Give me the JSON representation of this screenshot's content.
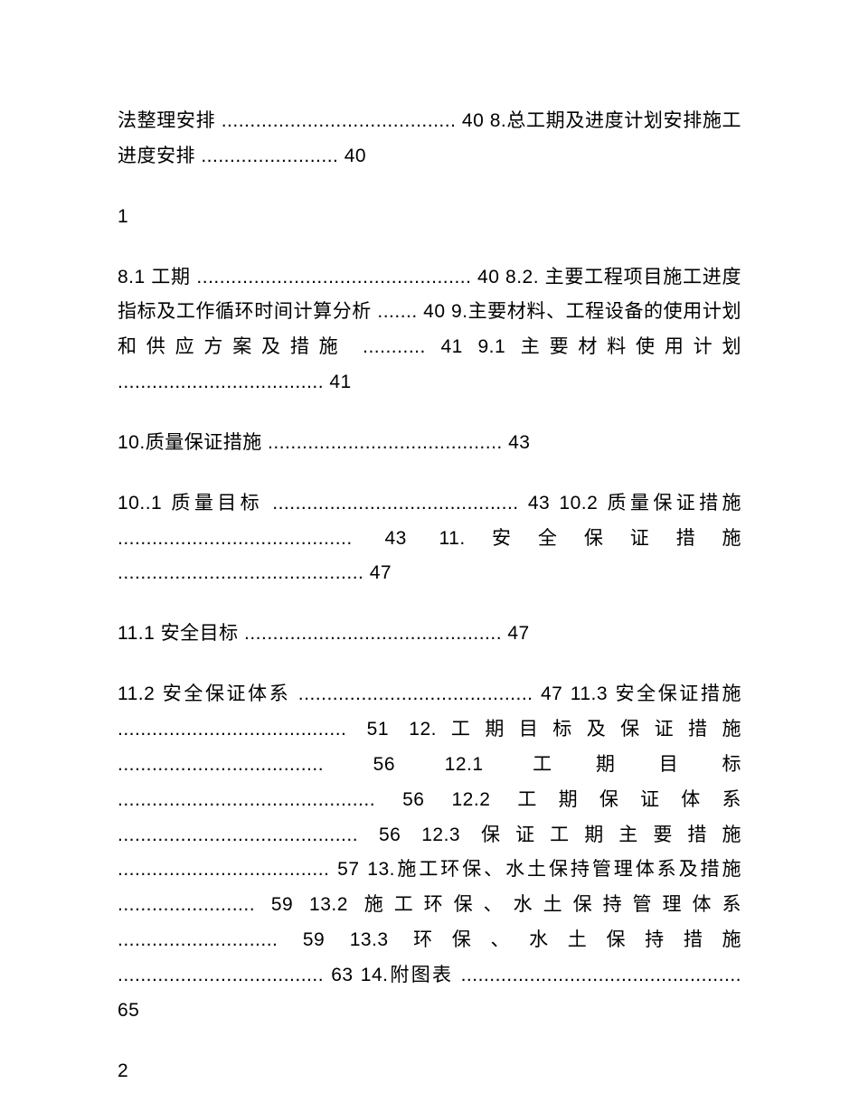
{
  "document": {
    "font_size": 21,
    "line_height": 1.85,
    "text_color": "#000000",
    "background_color": "#ffffff",
    "paragraphs": [
      {
        "type": "paragraph",
        "text": "法整理安排 ......................................... 40 8.总工期及进度计划安排施工进度安排 ........................ 40"
      },
      {
        "type": "page-num",
        "text": "1"
      },
      {
        "type": "paragraph",
        "text": "8.1 工期 ................................................ 40 8.2. 主要工程项目施工进度指标及工作循环时间计算分析 ....... 40 9.主要材料、工程设备的使用计划和供应方案及措施 ........... 41 9.1 主要材料使用计划 .................................... 41"
      },
      {
        "type": "paragraph",
        "text": "10.质量保证措施 ......................................... 43"
      },
      {
        "type": "paragraph",
        "text": "10..1 质量目标 ........................................... 43 10.2 质量保证措施 ......................................... 43 11.安全保证措施 ........................................... 47"
      },
      {
        "type": "paragraph",
        "text": "11.1 安全目标 ............................................. 47"
      },
      {
        "type": "paragraph",
        "text": "11.2 安全保证体系 ......................................... 47 11.3 安全保证措施 ........................................ 51 12.工期目标及保证措施 .................................... 56 12.1 工期目标 ............................................. 56 12.2 工期保证体系 .......................................... 56 12.3 保证工期主要措施 ..................................... 57 13.施工环保、水土保持管理体系及措施 ........................ 59 13.2 施工环保、水土保持管理体系 ............................ 59 13.3 环保、水土保持措施 .................................... 63 14.附图表 ................................................. 65"
      },
      {
        "type": "page-num",
        "text": "2"
      }
    ]
  }
}
